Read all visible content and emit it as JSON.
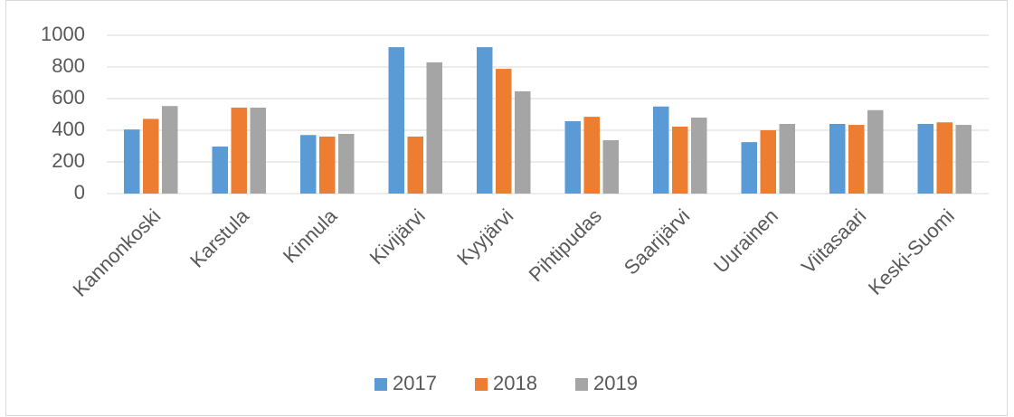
{
  "chart_data": {
    "type": "bar",
    "categories": [
      "Kannonkoski",
      "Karstula",
      "Kinnula",
      "Kivijärvi",
      "Kyyjärvi",
      "Pihtipudas",
      "Saarijärvi",
      "Uurainen",
      "Viitasaari",
      "Keski-Suomi"
    ],
    "series": [
      {
        "name": "2017",
        "color": "#5b9bd5",
        "values": [
          405,
          297,
          370,
          925,
          925,
          457,
          550,
          325,
          440,
          440
        ]
      },
      {
        "name": "2018",
        "color": "#ed7d31",
        "values": [
          472,
          543,
          360,
          360,
          788,
          485,
          423,
          400,
          434,
          450
        ]
      },
      {
        "name": "2019",
        "color": "#a5a5a5",
        "values": [
          553,
          543,
          377,
          829,
          646,
          337,
          480,
          440,
          527,
          434
        ]
      }
    ],
    "ylim": [
      0,
      1000
    ],
    "yticks": [
      0,
      200,
      400,
      600,
      800,
      1000
    ],
    "grid": true,
    "legend": "bottom"
  }
}
